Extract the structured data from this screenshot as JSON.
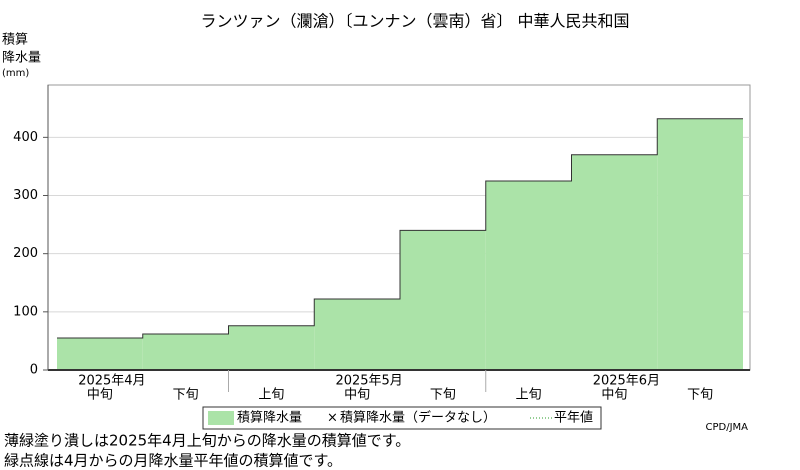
{
  "chart_data": {
    "type": "step-area",
    "title": "ランツァン（瀾滄）〔ユンナン（雲南）省〕 中華人民共和国",
    "y_label": [
      "積算",
      "降水量",
      "(mm)"
    ],
    "categories": [
      "中旬",
      "下旬",
      "上旬",
      "中旬",
      "下旬",
      "上旬",
      "中旬",
      "下旬"
    ],
    "months": [
      "2025年4月",
      "2025年5月",
      "2025年6月"
    ],
    "series": [
      {
        "name": "積算降水量",
        "color": "#abe3a8",
        "values": [
          55,
          62,
          76,
          122,
          240,
          325,
          370,
          432
        ]
      }
    ],
    "legend_extra": [
      "積算降水量（データなし）",
      "平年値"
    ],
    "ylim": [
      0,
      490
    ],
    "yticks": [
      0,
      100,
      200,
      300,
      400
    ],
    "grid": true,
    "credit": "CPD/JMA",
    "notes": [
      "薄緑塗り潰しは2025年4月上旬からの降水量の積算値です。",
      "緑点線は4月からの月降水量平年値の積算値です。"
    ]
  }
}
